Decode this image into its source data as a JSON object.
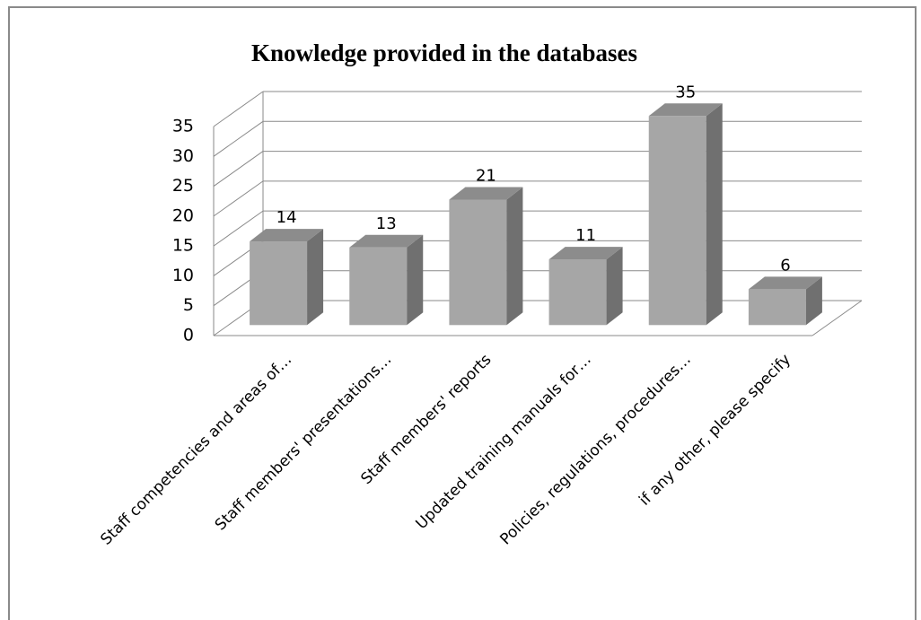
{
  "chart_data": {
    "type": "bar",
    "title": "Knowledge provided in the databases",
    "categories": [
      "Staff competencies and areas of…",
      "Staff members' presentations…",
      "Staff members' reports",
      "Updated training manuals for…",
      "Policies, regulations, procedures…",
      "if any other, please specify"
    ],
    "values": [
      14,
      13,
      21,
      11,
      35,
      6
    ],
    "color": "#a6a6a6",
    "ylim": [
      0,
      35
    ],
    "yticks": [
      0,
      5,
      10,
      15,
      20,
      25,
      30,
      35
    ],
    "grid": true
  }
}
